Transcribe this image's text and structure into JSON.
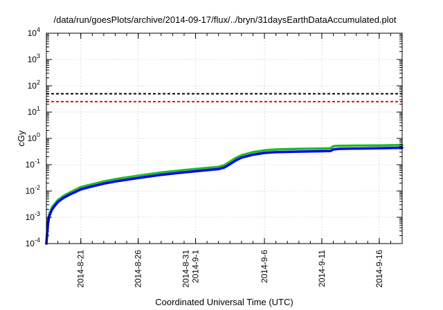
{
  "chart_data": {
    "type": "line",
    "title": "/data/run/goesPlots/archive/2014-09-17/flux/../bryn/31daysEarthDataAccumulated.plot",
    "xlabel": "Coordinated Universal Time (UTC)",
    "ylabel": "cGy",
    "yscale": "log",
    "ylim": [
      0.0001,
      10000
    ],
    "xlim": [
      "2014-08-18",
      "2014-09-18"
    ],
    "grid": true,
    "x_ticks": [
      {
        "date": "2014-08-21",
        "lines": [
          "2014-8-21"
        ]
      },
      {
        "date": "2014-08-26",
        "lines": [
          "2014-8-26"
        ]
      },
      {
        "date": "2014-08-31",
        "lines": [
          "2014-8-31",
          "2014-9-1"
        ]
      },
      {
        "date": "2014-09-06",
        "lines": [
          "2014-9-6"
        ]
      },
      {
        "date": "2014-09-11",
        "lines": [
          "2014-9-11"
        ]
      },
      {
        "date": "2014-09-16",
        "lines": [
          "2014-9-16"
        ]
      }
    ],
    "y_ticks": [
      {
        "value": 0.0001,
        "base": "10",
        "exp": "-4"
      },
      {
        "value": 0.001,
        "base": "10",
        "exp": "-3"
      },
      {
        "value": 0.01,
        "base": "10",
        "exp": "-2"
      },
      {
        "value": 0.1,
        "base": "10",
        "exp": "-1"
      },
      {
        "value": 1,
        "base": "10",
        "exp": "0"
      },
      {
        "value": 10,
        "base": "10",
        "exp": "1"
      },
      {
        "value": 100,
        "base": "10",
        "exp": "2"
      },
      {
        "value": 1000,
        "base": "10",
        "exp": "3"
      },
      {
        "value": 10000,
        "base": "10",
        "exp": "4"
      }
    ],
    "reference_lines": [
      {
        "value": 50,
        "color": "#000000",
        "style": "dashed"
      },
      {
        "value": 25,
        "color": "#ff0000",
        "style": "dashed"
      }
    ],
    "series": [
      {
        "color": "#22bb22",
        "points": [
          [
            "2014-08-18 00:00",
            0.0001
          ],
          [
            "2014-08-18 03:00",
            0.0006
          ],
          [
            "2014-08-18 06:00",
            0.0013
          ],
          [
            "2014-08-18 12:00",
            0.0024
          ],
          [
            "2014-08-18 18:00",
            0.0033
          ],
          [
            "2014-08-19 00:00",
            0.0045
          ],
          [
            "2014-08-19 12:00",
            0.0065
          ],
          [
            "2014-08-20 00:00",
            0.0085
          ],
          [
            "2014-08-20 12:00",
            0.011
          ],
          [
            "2014-08-21 00:00",
            0.014
          ],
          [
            "2014-08-22 00:00",
            0.018
          ],
          [
            "2014-08-23 00:00",
            0.023
          ],
          [
            "2014-08-24 00:00",
            0.028
          ],
          [
            "2014-08-26 00:00",
            0.038
          ],
          [
            "2014-08-28 00:00",
            0.05
          ],
          [
            "2014-08-30 00:00",
            0.062
          ],
          [
            "2014-09-01 00:00",
            0.075
          ],
          [
            "2014-09-02 00:00",
            0.082
          ],
          [
            "2014-09-02 12:00",
            0.095
          ],
          [
            "2014-09-03 00:00",
            0.13
          ],
          [
            "2014-09-03 12:00",
            0.18
          ],
          [
            "2014-09-04 00:00",
            0.23
          ],
          [
            "2014-09-05 00:00",
            0.3
          ],
          [
            "2014-09-06 00:00",
            0.35
          ],
          [
            "2014-09-07 00:00",
            0.38
          ],
          [
            "2014-09-09 00:00",
            0.4
          ],
          [
            "2014-09-11 00:00",
            0.41
          ],
          [
            "2014-09-11 18:00",
            0.42
          ],
          [
            "2014-09-12 00:00",
            0.5
          ],
          [
            "2014-09-12 12:00",
            0.52
          ],
          [
            "2014-09-14 00:00",
            0.53
          ],
          [
            "2014-09-16 00:00",
            0.54
          ],
          [
            "2014-09-18 00:00",
            0.56
          ]
        ]
      },
      {
        "color": "#0000ff",
        "points": [
          [
            "2014-08-18 00:00",
            0.0001
          ],
          [
            "2014-08-18 03:00",
            0.0005
          ],
          [
            "2014-08-18 06:00",
            0.0011
          ],
          [
            "2014-08-18 12:00",
            0.002
          ],
          [
            "2014-08-18 18:00",
            0.0028
          ],
          [
            "2014-08-19 00:00",
            0.0038
          ],
          [
            "2014-08-19 12:00",
            0.0055
          ],
          [
            "2014-08-20 00:00",
            0.0072
          ],
          [
            "2014-08-20 12:00",
            0.009
          ],
          [
            "2014-08-21 00:00",
            0.0115
          ],
          [
            "2014-08-22 00:00",
            0.015
          ],
          [
            "2014-08-23 00:00",
            0.019
          ],
          [
            "2014-08-24 00:00",
            0.023
          ],
          [
            "2014-08-26 00:00",
            0.031
          ],
          [
            "2014-08-28 00:00",
            0.041
          ],
          [
            "2014-08-30 00:00",
            0.051
          ],
          [
            "2014-09-01 00:00",
            0.062
          ],
          [
            "2014-09-02 00:00",
            0.068
          ],
          [
            "2014-09-02 12:00",
            0.078
          ],
          [
            "2014-09-03 00:00",
            0.105
          ],
          [
            "2014-09-03 12:00",
            0.145
          ],
          [
            "2014-09-04 00:00",
            0.185
          ],
          [
            "2014-09-05 00:00",
            0.24
          ],
          [
            "2014-09-06 00:00",
            0.28
          ],
          [
            "2014-09-07 00:00",
            0.3
          ],
          [
            "2014-09-09 00:00",
            0.315
          ],
          [
            "2014-09-11 00:00",
            0.325
          ],
          [
            "2014-09-11 18:00",
            0.33
          ],
          [
            "2014-09-12 00:00",
            0.38
          ],
          [
            "2014-09-12 12:00",
            0.4
          ],
          [
            "2014-09-14 00:00",
            0.41
          ],
          [
            "2014-09-16 00:00",
            0.42
          ],
          [
            "2014-09-18 00:00",
            0.44
          ]
        ]
      }
    ]
  }
}
